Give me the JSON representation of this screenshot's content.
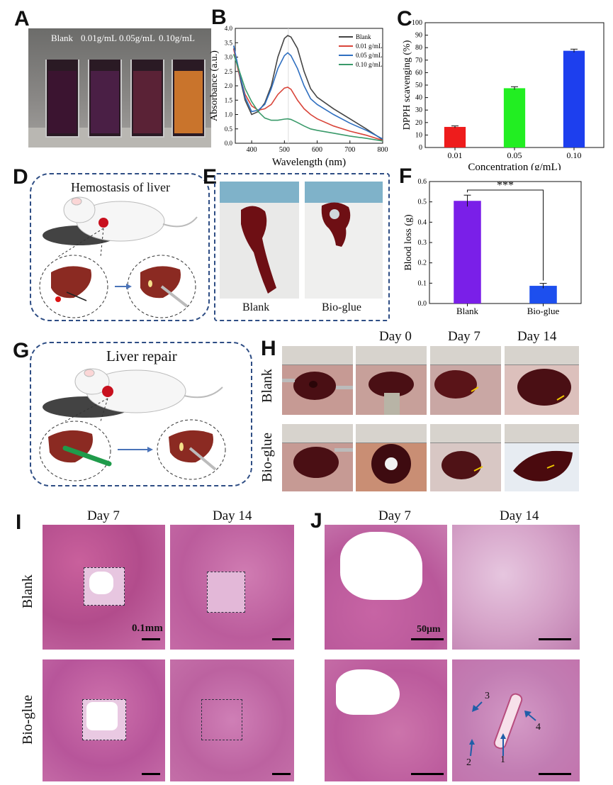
{
  "panels": {
    "A": {
      "label": "A",
      "vial_labels": [
        "Blank",
        "0.01g/mL",
        "0.05g/mL",
        "0.10g/mL"
      ],
      "vial_colors": [
        "#3b1430",
        "#4a1f45",
        "#5a2236",
        "#c9742c"
      ]
    },
    "B": {
      "label": "B"
    },
    "C": {
      "label": "C"
    },
    "D": {
      "label": "D",
      "title": "Hemostasis of liver"
    },
    "E": {
      "label": "E",
      "captions": [
        "Blank",
        "Bio-glue"
      ]
    },
    "F": {
      "label": "F",
      "significance": "***"
    },
    "G": {
      "label": "G",
      "title": "Liver repair"
    },
    "H": {
      "label": "H",
      "days": [
        "Day 0",
        "Day 7",
        "Day 14"
      ],
      "rows": [
        "Blank",
        "Bio-glue"
      ]
    },
    "I": {
      "label": "I",
      "days": [
        "Day 7",
        "Day 14"
      ],
      "rows": [
        "Blank",
        "Bio-glue"
      ],
      "scale": "0.1mm"
    },
    "J": {
      "label": "J",
      "days": [
        "Day 7",
        "Day 14"
      ],
      "scale": "50μm",
      "annotations": [
        "1",
        "2",
        "3",
        "4"
      ]
    }
  },
  "chart_data": [
    {
      "panel": "B",
      "type": "line",
      "xlabel": "Wavelength (nm)",
      "ylabel": "Absorbance (a.u.)",
      "xlim": [
        350,
        800
      ],
      "ylim": [
        0,
        4.0
      ],
      "xticks": [
        400,
        500,
        600,
        700,
        800
      ],
      "yticks": [
        0.0,
        0.5,
        1.0,
        1.5,
        2.0,
        2.5,
        3.0,
        3.5,
        4.0
      ],
      "ytick_labels": [
        "0.0",
        "0.5",
        "1.0",
        "1.5",
        "2.0",
        "2.5",
        "3.0",
        "3.5",
        "4.0"
      ],
      "legend_position": "top-right",
      "series": [
        {
          "name": "Blank",
          "color": "#444444",
          "x": [
            345,
            360,
            380,
            400,
            420,
            440,
            460,
            480,
            500,
            510,
            520,
            540,
            560,
            580,
            600,
            650,
            700,
            750,
            800
          ],
          "y": [
            3.3,
            2.5,
            1.5,
            1.0,
            1.1,
            1.4,
            2.0,
            3.0,
            3.65,
            3.75,
            3.7,
            3.3,
            2.5,
            1.9,
            1.6,
            1.2,
            0.85,
            0.5,
            0.12
          ]
        },
        {
          "name": "0.01 g/mL",
          "color": "#d9453a",
          "x": [
            345,
            360,
            380,
            400,
            420,
            440,
            460,
            480,
            500,
            510,
            520,
            540,
            560,
            580,
            600,
            650,
            700,
            750,
            800
          ],
          "y": [
            3.3,
            2.5,
            1.7,
            1.3,
            1.15,
            1.2,
            1.35,
            1.7,
            1.92,
            1.95,
            1.88,
            1.5,
            1.2,
            1.0,
            0.85,
            0.6,
            0.42,
            0.28,
            0.1
          ]
        },
        {
          "name": "0.05 g/mL",
          "color": "#2f6fc0",
          "x": [
            345,
            360,
            380,
            400,
            420,
            440,
            460,
            480,
            500,
            510,
            520,
            540,
            560,
            580,
            600,
            650,
            700,
            750,
            800
          ],
          "y": [
            3.4,
            2.6,
            1.6,
            1.1,
            1.15,
            1.35,
            1.9,
            2.6,
            3.05,
            3.15,
            3.05,
            2.6,
            2.0,
            1.55,
            1.35,
            1.0,
            0.7,
            0.45,
            0.15
          ]
        },
        {
          "name": "0.10 g/mL",
          "color": "#3a9a6a",
          "x": [
            345,
            360,
            380,
            400,
            420,
            440,
            460,
            480,
            500,
            510,
            520,
            540,
            560,
            580,
            600,
            650,
            700,
            750,
            800
          ],
          "y": [
            3.1,
            2.6,
            1.9,
            1.45,
            1.1,
            0.88,
            0.8,
            0.8,
            0.84,
            0.85,
            0.83,
            0.72,
            0.6,
            0.5,
            0.45,
            0.35,
            0.25,
            0.17,
            0.08
          ]
        }
      ]
    },
    {
      "panel": "C",
      "type": "bar",
      "xlabel": "Concentration (g/mL)",
      "ylabel": "DPPH scavenging (%)",
      "categories": [
        "0.01",
        "0.05",
        "0.10"
      ],
      "values": [
        16.5,
        47.5,
        77.5
      ],
      "errors": [
        0.8,
        1.2,
        1.3
      ],
      "colors": [
        "#ee1c1c",
        "#22ee22",
        "#1d3fee"
      ],
      "ylim": [
        0,
        100
      ],
      "yticks": [
        0,
        10,
        20,
        30,
        40,
        50,
        60,
        70,
        80,
        90,
        100
      ]
    },
    {
      "panel": "F",
      "type": "bar",
      "ylabel": "Blood loss (g)",
      "categories": [
        "Blank",
        "Bio-glue"
      ],
      "values": [
        0.505,
        0.087
      ],
      "errors": [
        0.028,
        0.012
      ],
      "colors": [
        "#7a1fe8",
        "#1d4fee"
      ],
      "ylim": [
        0,
        0.6
      ],
      "yticks": [
        0.0,
        0.1,
        0.2,
        0.3,
        0.4,
        0.5,
        0.6
      ],
      "ytick_labels": [
        "0.0",
        "0.1",
        "0.2",
        "0.3",
        "0.4",
        "0.5",
        "0.6"
      ]
    }
  ]
}
